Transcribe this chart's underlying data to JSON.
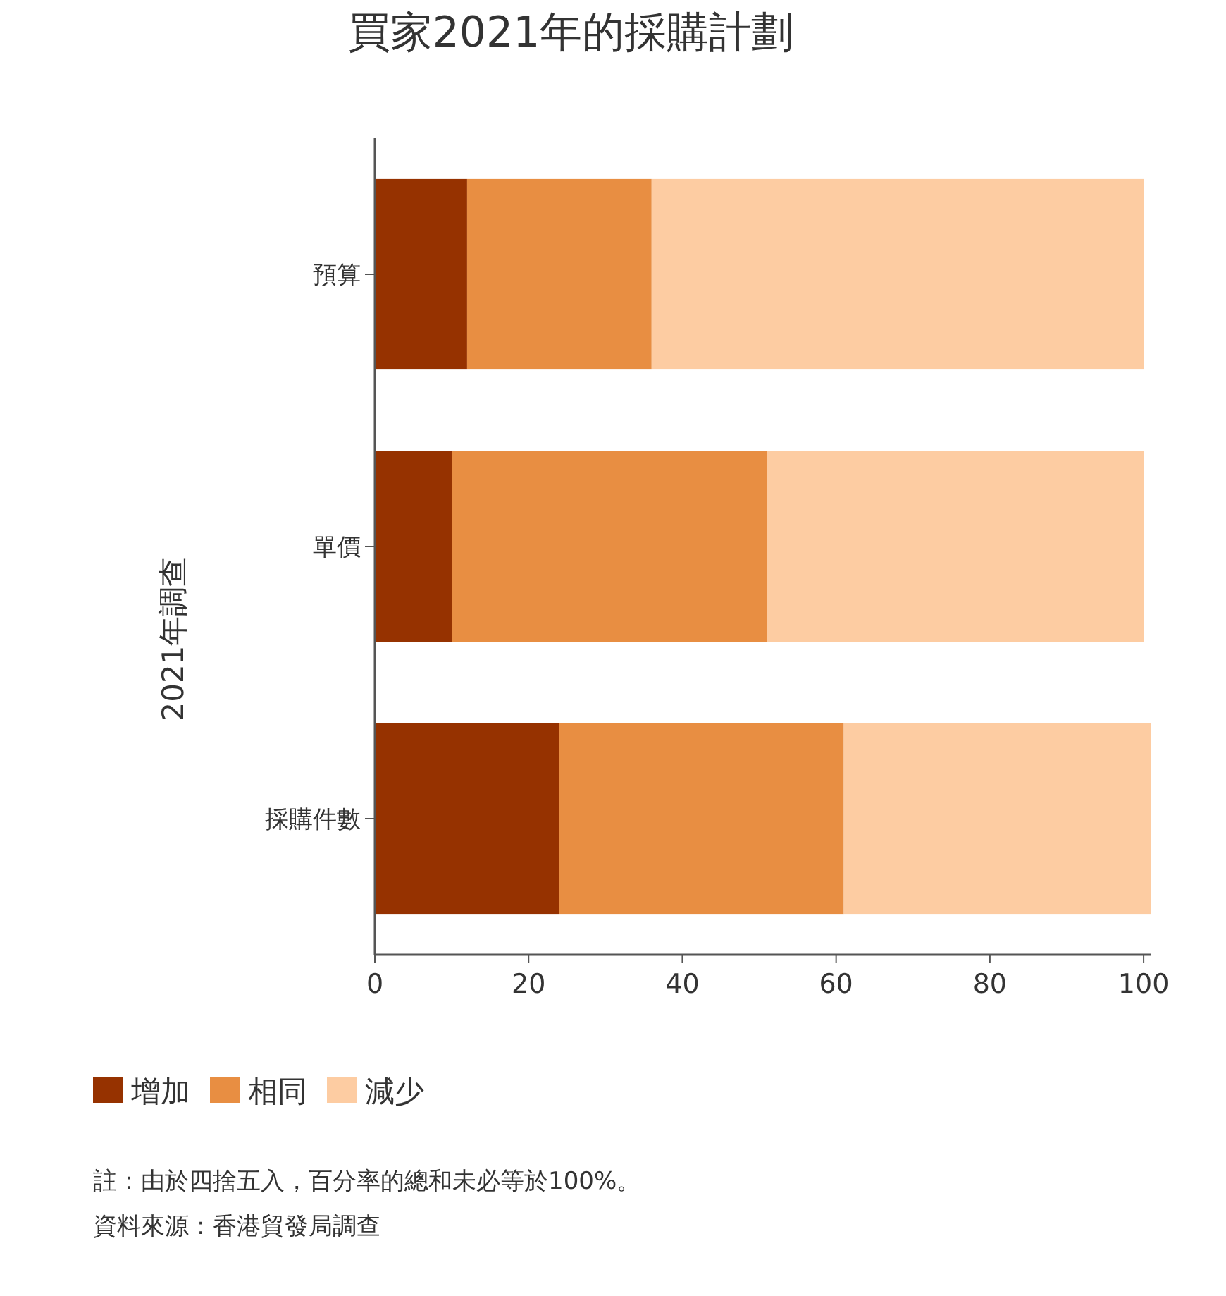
{
  "chart_data": {
    "type": "bar",
    "orientation": "horizontal",
    "stacked": true,
    "title": "買家2021年的採購計劃",
    "ylabel": "2021年調查",
    "categories": [
      "預算",
      "單價",
      "採購件數"
    ],
    "series": [
      {
        "name": "增加",
        "color": "#963200",
        "values": [
          12,
          10,
          24
        ]
      },
      {
        "name": "相同",
        "color": "#e88e42",
        "values": [
          24,
          41,
          37
        ]
      },
      {
        "name": "減少",
        "color": "#fdcca2",
        "values": [
          64,
          49,
          40
        ]
      }
    ],
    "xlim": [
      0,
      101
    ],
    "xticks": [
      0,
      20,
      40,
      60,
      80,
      100
    ],
    "grid": false,
    "legend": "bottom",
    "annotations": [
      "註：由於四捨五入，百分率的總和未必等於100%。",
      "資料來源：香港貿發局調查"
    ]
  }
}
